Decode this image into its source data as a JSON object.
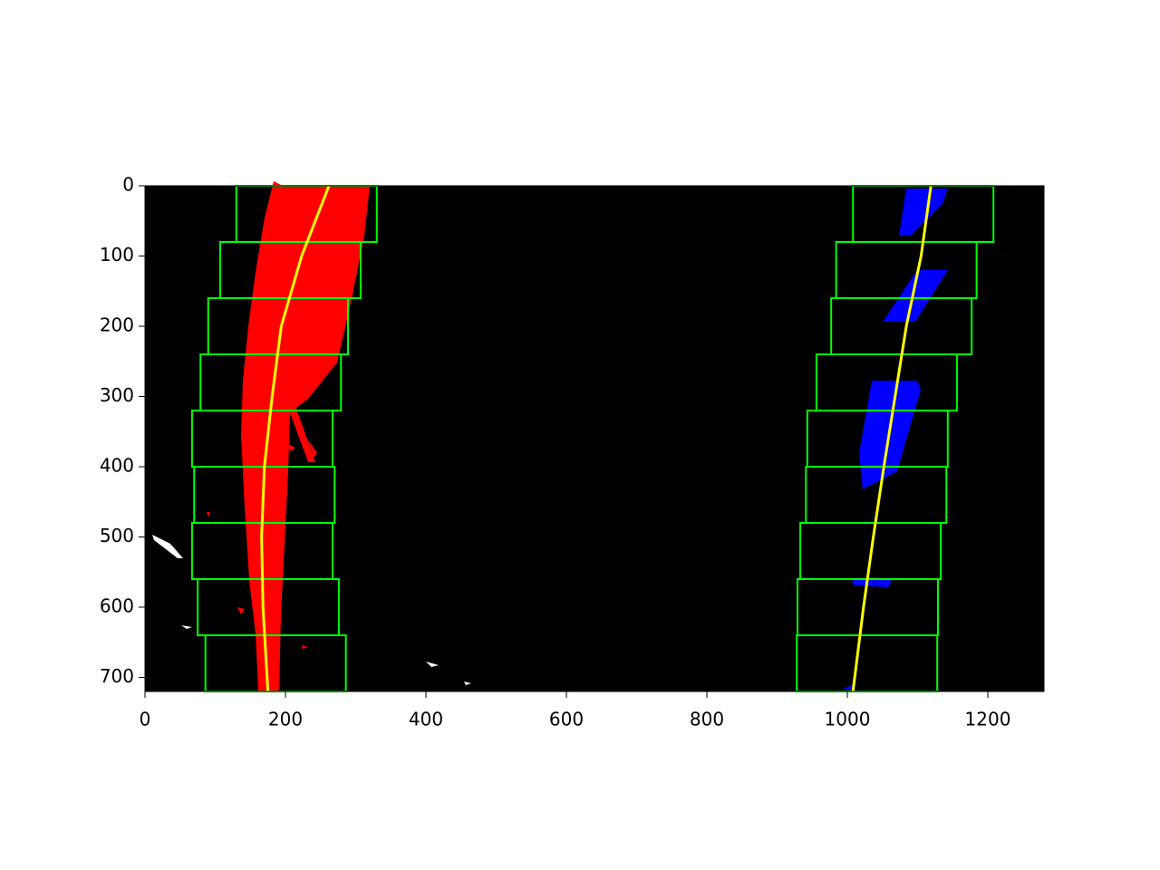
{
  "chart_data": {
    "type": "image",
    "xlim": [
      0,
      1280
    ],
    "ylim": [
      720,
      0
    ],
    "xticks": [
      0,
      200,
      400,
      600,
      800,
      1000,
      1200
    ],
    "yticks": [
      0,
      100,
      200,
      300,
      400,
      500,
      600,
      700
    ],
    "background": "#000000",
    "window_color": "#00ff00",
    "windows": [
      {
        "x": [
          130,
          330
        ],
        "y": [
          0,
          80
        ]
      },
      {
        "x": [
          107,
          307
        ],
        "y": [
          80,
          160
        ]
      },
      {
        "x": [
          90,
          289
        ],
        "y": [
          160,
          240
        ]
      },
      {
        "x": [
          79,
          279
        ],
        "y": [
          240,
          320
        ]
      },
      {
        "x": [
          67,
          267
        ],
        "y": [
          320,
          400
        ]
      },
      {
        "x": [
          70,
          270
        ],
        "y": [
          400,
          480
        ]
      },
      {
        "x": [
          67,
          267
        ],
        "y": [
          480,
          560
        ]
      },
      {
        "x": [
          75,
          276
        ],
        "y": [
          560,
          640
        ]
      },
      {
        "x": [
          86,
          286
        ],
        "y": [
          640,
          720
        ]
      },
      {
        "x": [
          1008,
          1208
        ],
        "y": [
          0,
          80
        ]
      },
      {
        "x": [
          984,
          1184
        ],
        "y": [
          80,
          160
        ]
      },
      {
        "x": [
          977,
          1177
        ],
        "y": [
          160,
          240
        ]
      },
      {
        "x": [
          956,
          1156
        ],
        "y": [
          240,
          320
        ]
      },
      {
        "x": [
          943,
          1143
        ],
        "y": [
          320,
          400
        ]
      },
      {
        "x": [
          941,
          1141
        ],
        "y": [
          400,
          480
        ]
      },
      {
        "x": [
          933,
          1133
        ],
        "y": [
          480,
          560
        ]
      },
      {
        "x": [
          929,
          1129
        ],
        "y": [
          560,
          640
        ]
      },
      {
        "x": [
          928,
          1128
        ],
        "y": [
          640,
          720
        ]
      }
    ],
    "lines": [
      {
        "color": "#ffff00",
        "y": [
          0,
          100,
          200,
          300,
          400,
          500,
          600,
          720
        ],
        "x": [
          262,
          223,
          194,
          181,
          170,
          166,
          168,
          175
        ]
      },
      {
        "color": "#ffff00",
        "y": [
          0,
          100,
          200,
          300,
          400,
          500,
          600,
          720
        ],
        "x": [
          1119,
          1105,
          1084,
          1068,
          1052,
          1037,
          1023,
          1008
        ]
      }
    ]
  }
}
